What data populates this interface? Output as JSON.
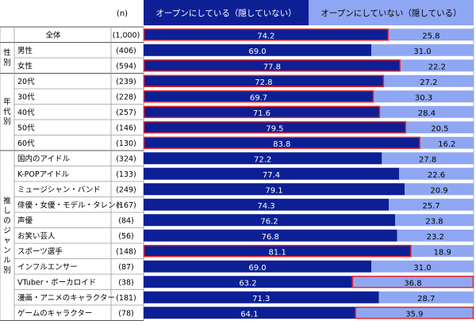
{
  "header": {
    "n_label": "(n)",
    "legend_open": "オープンにしている（隠していない）",
    "legend_hidden": "オープンにしていない（隠している）"
  },
  "colors": {
    "open": "#0d1f94",
    "hidden": "#8fa7f2",
    "highlight": "#e8242c",
    "grid": "#9a9a9a"
  },
  "chart_data": {
    "type": "bar",
    "stacked": true,
    "orientation": "horizontal",
    "percent": true,
    "series": [
      {
        "name": "オープンにしている（隠していない）",
        "values": [
          74.2,
          69.0,
          77.8,
          72.8,
          69.7,
          71.6,
          79.5,
          83.8,
          72.2,
          77.4,
          79.1,
          74.3,
          76.2,
          76.8,
          81.1,
          69.0,
          63.2,
          71.3,
          64.1
        ]
      },
      {
        "name": "オープンにしていない（隠している）",
        "values": [
          25.8,
          31.0,
          22.2,
          27.2,
          30.3,
          28.4,
          20.5,
          16.2,
          27.8,
          22.6,
          20.9,
          25.7,
          23.8,
          23.2,
          18.9,
          31.0,
          36.8,
          28.7,
          35.9
        ]
      }
    ],
    "groups": [
      {
        "label": "",
        "rows": [
          {
            "category": "全体",
            "n": "(1,000)",
            "highlight": "open"
          }
        ]
      },
      {
        "label": "性別",
        "rows": [
          {
            "category": "男性",
            "n": "(406)",
            "highlight": "none"
          },
          {
            "category": "女性",
            "n": "(594)",
            "highlight": "open"
          }
        ]
      },
      {
        "label": "年代別",
        "rows": [
          {
            "category": "20代",
            "n": "(239)",
            "highlight": "open"
          },
          {
            "category": "30代",
            "n": "(228)",
            "highlight": "open"
          },
          {
            "category": "40代",
            "n": "(257)",
            "highlight": "open"
          },
          {
            "category": "50代",
            "n": "(146)",
            "highlight": "open"
          },
          {
            "category": "60代",
            "n": "(130)",
            "highlight": "open"
          }
        ]
      },
      {
        "label": "推しのジャンル別",
        "rows": [
          {
            "category": "国内のアイドル",
            "n": "(324)",
            "highlight": "none"
          },
          {
            "category": "K-POPアイドル",
            "n": "(133)",
            "highlight": "none"
          },
          {
            "category": "ミュージシャン・バンド",
            "n": "(249)",
            "highlight": "none"
          },
          {
            "category": "俳優・女優・モデル・タレント",
            "n": "(167)",
            "highlight": "none"
          },
          {
            "category": "声優",
            "n": "(84)",
            "highlight": "none"
          },
          {
            "category": "お笑い芸人",
            "n": "(56)",
            "highlight": "none"
          },
          {
            "category": "スポーツ選手",
            "n": "(148)",
            "highlight": "open"
          },
          {
            "category": "インフルエンサー",
            "n": "(87)",
            "highlight": "none"
          },
          {
            "category": "VTuber・ボーカロイド",
            "n": "(38)",
            "highlight": "hidden"
          },
          {
            "category": "漫画・アニメのキャラクター",
            "n": "(181)",
            "highlight": "none"
          },
          {
            "category": "ゲームのキャラクター",
            "n": "(78)",
            "highlight": "hidden"
          }
        ]
      }
    ],
    "xlim": [
      0,
      100
    ]
  }
}
